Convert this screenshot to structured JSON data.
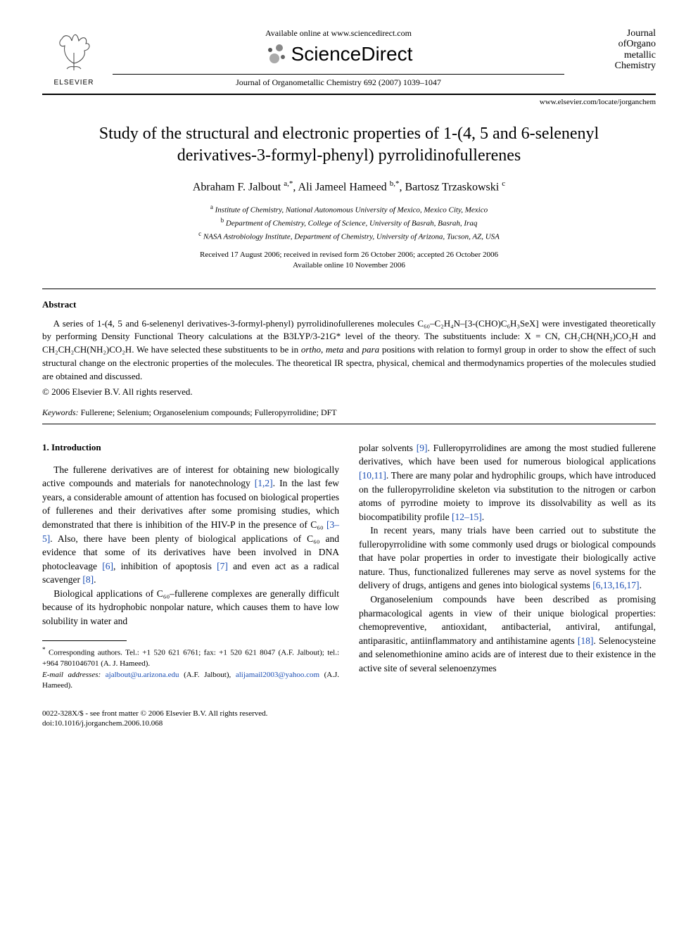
{
  "header": {
    "elsevier_label": "ELSEVIER",
    "available_line": "Available online at www.sciencedirect.com",
    "sd_text": "ScienceDirect",
    "journal_ref": "Journal of Organometallic Chemistry 692 (2007) 1039–1047",
    "journal_logo": {
      "line1": "Journal",
      "line2": "ofOrgano",
      "line3": "metallic",
      "line4": "Chemistry"
    },
    "locate": "www.elsevier.com/locate/jorganchem"
  },
  "title": "Study of the structural and electronic properties of 1-(4, 5 and 6-selenenyl derivatives-3-formyl-phenyl) pyrrolidinofullerenes",
  "authors_html": "Abraham F. Jalbout <sup>a,*</sup>, Ali Jameel Hameed <sup>b,*</sup>, Bartosz Trzaskowski <sup>c</sup>",
  "affiliations": {
    "a": "Institute of Chemistry, National Autonomous University of Mexico, Mexico City, Mexico",
    "b": "Department of Chemistry, College of Science, University of Basrah, Basrah, Iraq",
    "c": "NASA Astrobiology Institute, Department of Chemistry, University of Arizona, Tucson, AZ, USA"
  },
  "dates": {
    "line1": "Received 17 August 2006; received in revised form 26 October 2006; accepted 26 October 2006",
    "line2": "Available online 10 November 2006"
  },
  "abstract": {
    "heading": "Abstract",
    "body": "A series of 1-(4, 5 and 6-selenenyl derivatives-3-formyl-phenyl) pyrrolidinofullerenes molecules C₆₀–C₂H₄N–[3-(CHO)C₆H₃SeX] were investigated theoretically by performing Density Functional Theory calculations at the B3LYP/3-21G* level of the theory. The substituents include: X = CN, CH₂CH(NH₂)CO₂H and CH₂CH₂CH(NH₂)CO₂H. We have selected these substituents to be in ortho, meta and para positions with relation to formyl group in order to show the effect of such structural change on the electronic properties of the molecules. The theoretical IR spectra, physical, chemical and thermodynamics properties of the molecules studied are obtained and discussed.",
    "copyright": "© 2006 Elsevier B.V. All rights reserved."
  },
  "keywords": {
    "label": "Keywords:",
    "text": "Fullerene; Selenium; Organoselenium compounds; Fulleropyrrolidine; DFT"
  },
  "intro": {
    "heading": "1. Introduction",
    "p1": "The fullerene derivatives are of interest for obtaining new biologically active compounds and materials for nanotechnology [1,2]. In the last few years, a considerable amount of attention has focused on biological properties of fullerenes and their derivatives after some promising studies, which demonstrated that there is inhibition of the HIV-P in the presence of C₆₀ [3–5]. Also, there have been plenty of biological applications of C₆₀ and evidence that some of its derivatives have been involved in DNA photocleavage [6], inhibition of apoptosis [7] and even act as a radical scavenger [8].",
    "p2": "Biological applications of C₆₀–fullerene complexes are generally difficult because of its hydrophobic nonpolar nature, which causes them to have low solubility in water and",
    "p3": "polar solvents [9]. Fulleropyrrolidines are among the most studied fullerene derivatives, which have been used for numerous biological applications [10,11]. There are many polar and hydrophilic groups, which have introduced on the fulleropyrrolidine skeleton via substitution to the nitrogen or carbon atoms of pyrrodine moiety to improve its dissolvability as well as its biocompatibility profile [12–15].",
    "p4": "In recent years, many trials have been carried out to substitute the fulleropyrrolidine with some commonly used drugs or biological compounds that have polar properties in order to investigate their biologically active nature. Thus, functionalized fullerenes may serve as novel systems for the delivery of drugs, antigens and genes into biological systems [6,13,16,17].",
    "p5": "Organoselenium compounds have been described as promising pharmacological agents in view of their unique biological properties: chemopreventive, antioxidant, antibacterial, antiviral, antifungal, antiparasitic, antiinflammatory and antihistamine agents [18]. Selenocysteine and selenomethionine amino acids are of interest due to their existence in the active site of several selenoenzymes"
  },
  "footnotes": {
    "corr": "Corresponding authors. Tel.: +1 520 621 6761; fax: +1 520 621 8047 (A.F. Jalbout); tel.: +964 7801046701 (A. J. Hameed).",
    "email_label": "E-mail addresses:",
    "email1": "ajalbout@u.arizona.edu",
    "email1_paren": "(A.F. Jalbout),",
    "email2": "alijamail2003@yahoo.com",
    "email2_paren": "(A.J. Hameed)."
  },
  "footer": {
    "line1": "0022-328X/$ - see front matter © 2006 Elsevier B.V. All rights reserved.",
    "line2": "doi:10.1016/j.jorganchem.2006.10.068"
  },
  "colors": {
    "text": "#000000",
    "link": "#1a4db3",
    "background": "#ffffff"
  }
}
